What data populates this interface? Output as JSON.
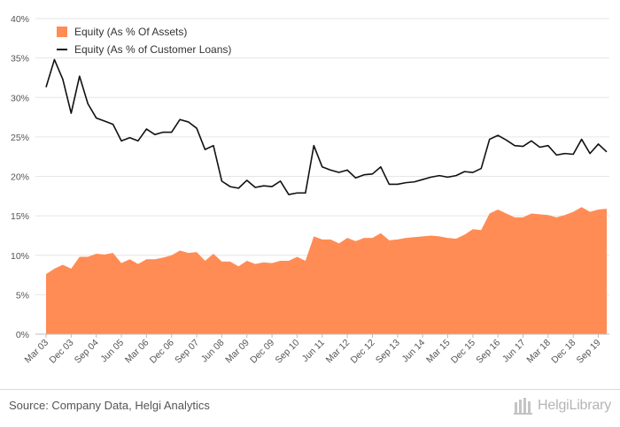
{
  "chart_data": {
    "type": "area",
    "y_unit": "%",
    "ylim": [
      0,
      40
    ],
    "y_ticks": [
      "0%",
      "5%",
      "10%",
      "15%",
      "20%",
      "25%",
      "30%",
      "35%",
      "40%"
    ],
    "x_labels": [
      "Mar 03",
      "Dec 03",
      "Sep 04",
      "Jun 05",
      "Mar 06",
      "Dec 06",
      "Sep 07",
      "Jun 08",
      "Mar 09",
      "Dec 09",
      "Sep 10",
      "Jun 11",
      "Mar 12",
      "Dec 12",
      "Sep 13",
      "Jun 14",
      "Mar 15",
      "Dec 15",
      "Sep 16",
      "Jun 17",
      "Mar 18",
      "Dec 18",
      "Sep 19"
    ],
    "grid": true,
    "legend_position": "top-left",
    "series": [
      {
        "name": "Equity (As % Of Assets)",
        "style": "area",
        "color": "#ff8c55",
        "values": [
          7.6,
          8.3,
          8.8,
          8.3,
          9.8,
          9.8,
          10.2,
          10.1,
          10.3,
          9.0,
          9.5,
          8.9,
          9.5,
          9.5,
          9.7,
          10.0,
          10.6,
          10.3,
          10.4,
          9.3,
          10.2,
          9.2,
          9.2,
          8.6,
          9.3,
          8.9,
          9.1,
          9.0,
          9.3,
          9.3,
          9.8,
          9.3,
          12.4,
          12.0,
          12.0,
          11.5,
          12.2,
          11.8,
          12.2,
          12.2,
          12.8,
          11.9,
          12.0,
          12.2,
          12.3,
          12.4,
          12.5,
          12.4,
          12.2,
          12.1,
          12.6,
          13.3,
          13.2,
          15.3,
          15.8,
          15.3,
          14.8,
          14.8,
          15.3,
          15.2,
          15.1,
          14.8,
          15.1,
          15.5,
          16.1,
          15.5,
          15.8,
          15.9
        ]
      },
      {
        "name": "Equity (As % of Customer Loans)",
        "style": "line",
        "color": "#111111",
        "values": [
          31.3,
          34.8,
          32.3,
          28.0,
          32.7,
          29.2,
          27.4,
          27.0,
          26.6,
          24.5,
          24.9,
          24.5,
          26.0,
          25.3,
          25.6,
          25.6,
          27.2,
          26.9,
          26.1,
          23.4,
          23.9,
          19.4,
          18.7,
          18.5,
          19.5,
          18.6,
          18.8,
          18.7,
          19.4,
          17.7,
          17.9,
          17.9,
          23.9,
          21.2,
          20.8,
          20.5,
          20.8,
          19.8,
          20.2,
          20.3,
          21.2,
          19.0,
          19.0,
          19.2,
          19.3,
          19.6,
          19.9,
          20.1,
          19.9,
          20.1,
          20.6,
          20.5,
          21.0,
          24.7,
          25.2,
          24.6,
          23.9,
          23.8,
          24.5,
          23.7,
          23.9,
          22.7,
          22.9,
          22.8,
          24.7,
          22.9,
          24.1,
          23.1
        ]
      }
    ]
  },
  "footer": {
    "source": "Source: Company Data, Helgi Analytics",
    "logo_text": "HelgiLibrary"
  }
}
